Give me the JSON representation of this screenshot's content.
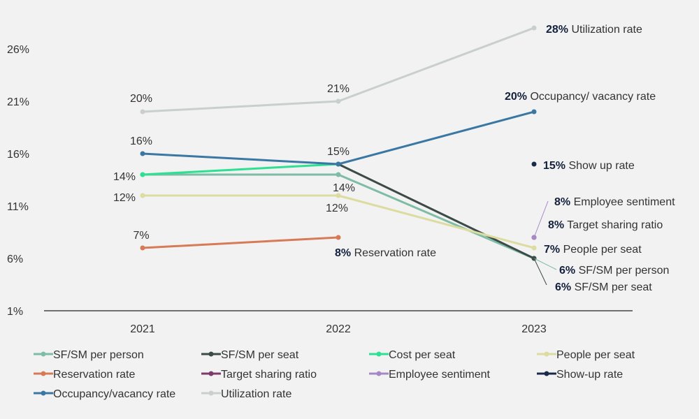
{
  "chart_data": {
    "type": "line",
    "x": [
      "2021",
      "2022",
      "2023"
    ],
    "ylim": [
      1,
      28
    ],
    "yticks": [
      "26%",
      "21%",
      "16%",
      "11%",
      "6%",
      "1%"
    ],
    "ytick_values": [
      26,
      21,
      16,
      11,
      6,
      1
    ],
    "series": [
      {
        "name": "SF/SM per person",
        "color": "#7fbca6",
        "values": [
          14,
          14,
          6
        ],
        "legend_label": "SF/SM per person",
        "labels": [
          null,
          {
            "pct": "14%",
            "text": ""
          },
          {
            "pct": "6%",
            "text": "SF/SM per person"
          }
        ]
      },
      {
        "name": "SF/SM per seat",
        "color": "#3c4a48",
        "values": [
          null,
          15,
          6
        ],
        "legend_label": "SF/SM per seat",
        "labels": [
          null,
          null,
          {
            "pct": "6%",
            "text": "SF/SM per seat"
          }
        ]
      },
      {
        "name": "Cost per seat",
        "color": "#2ee093",
        "values": [
          14,
          15,
          null
        ],
        "legend_label": "Cost per seat",
        "labels": [
          {
            "pct": "14%",
            "text": ""
          },
          null,
          null
        ]
      },
      {
        "name": "People per seat",
        "color": "#dcdca0",
        "values": [
          12,
          12,
          7
        ],
        "legend_label": "People per seat",
        "labels": [
          {
            "pct": "12%",
            "text": ""
          },
          {
            "pct": "12%",
            "text": ""
          },
          {
            "pct": "7%",
            "text": "People per seat"
          }
        ]
      },
      {
        "name": "Reservation rate",
        "color": "#d77a57",
        "values": [
          7,
          8,
          null
        ],
        "legend_label": "Reservation rate",
        "labels": [
          {
            "pct": "7%",
            "text": ""
          },
          {
            "pct": "8%",
            "text": "Reservation rate"
          },
          null
        ]
      },
      {
        "name": "Target sharing ratio",
        "color": "#7b3b6b",
        "values": [
          null,
          null,
          8
        ],
        "legend_label": "Target sharing ratio",
        "labels": [
          null,
          null,
          {
            "pct": "8%",
            "text": "Target sharing ratio"
          }
        ]
      },
      {
        "name": "Employee sentiment",
        "color": "#a688c4",
        "values": [
          null,
          null,
          8
        ],
        "legend_label": "Employee sentiment",
        "labels": [
          null,
          null,
          {
            "pct": "8%",
            "text": "Employee sentiment"
          }
        ]
      },
      {
        "name": "Show-up rate",
        "color": "#1a2a4a",
        "values": [
          null,
          null,
          15
        ],
        "legend_label": "Show-up rate",
        "labels": [
          null,
          null,
          {
            "pct": "15%",
            "text": "Show up rate"
          }
        ]
      },
      {
        "name": "Occupancy/vacancy rate",
        "color": "#3a77a3",
        "values": [
          16,
          15,
          20
        ],
        "legend_label": "Occupancy/vacancy rate",
        "labels": [
          {
            "pct": "16%",
            "text": ""
          },
          {
            "pct": "15%",
            "text": ""
          },
          {
            "pct": "20%",
            "text": "Occupancy/ vacancy rate"
          }
        ]
      },
      {
        "name": "Utilization rate",
        "color": "#c9d0cc",
        "values": [
          20,
          21,
          28
        ],
        "legend_label": "Utilization rate",
        "labels": [
          {
            "pct": "20%",
            "text": ""
          },
          {
            "pct": "21%",
            "text": ""
          },
          {
            "pct": "28%",
            "text": "Utilization rate"
          }
        ]
      }
    ]
  }
}
